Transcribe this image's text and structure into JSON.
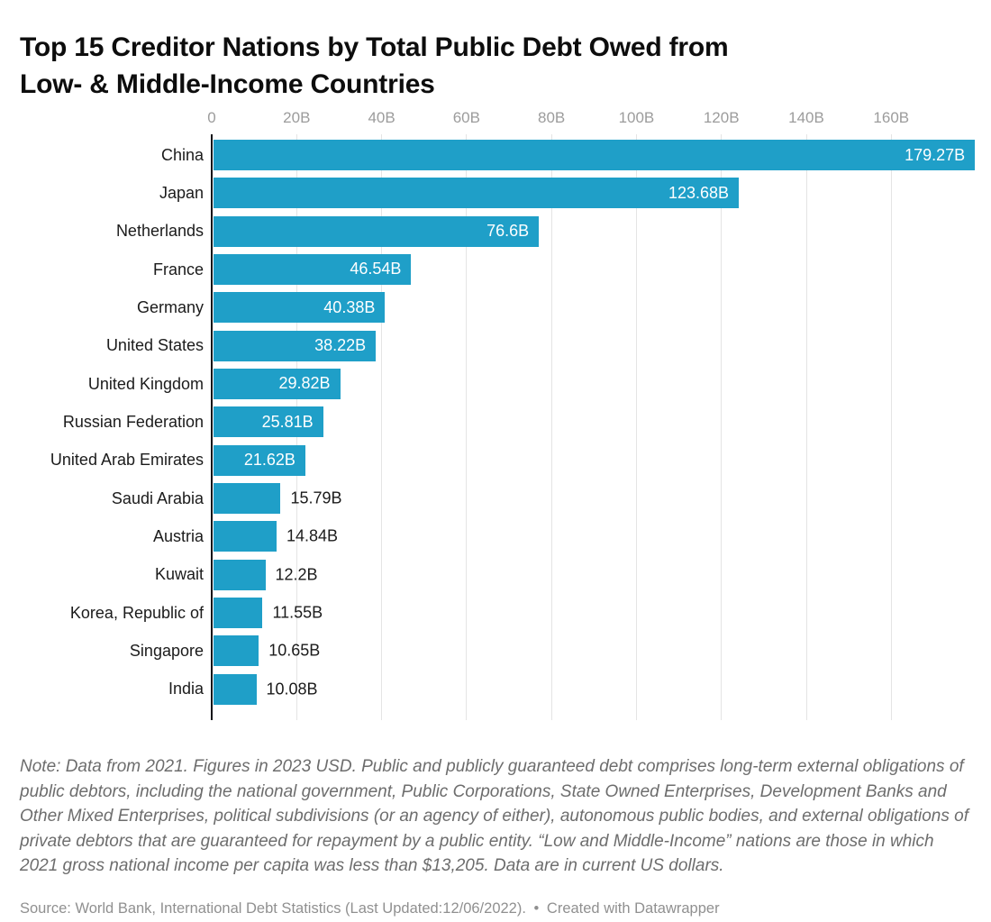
{
  "header": {
    "title_line1": "Top 15 Creditor Nations by Total Public Debt Owed from",
    "title_line2": "Low- & Middle-Income Countries"
  },
  "chart_data": {
    "type": "bar",
    "orientation": "horizontal",
    "title": "Top 15 Creditor Nations by Total Public Debt Owed from Low- & Middle-Income Countries",
    "categories": [
      "China",
      "Japan",
      "Netherlands",
      "France",
      "Germany",
      "United States",
      "United Kingdom",
      "Russian Federation",
      "United Arab Emirates",
      "Saudi Arabia",
      "Austria",
      "Kuwait",
      "Korea, Republic of",
      "Singapore",
      "India"
    ],
    "values": [
      179.27,
      123.68,
      76.6,
      46.54,
      40.38,
      38.22,
      29.82,
      25.81,
      21.62,
      15.79,
      14.84,
      12.2,
      11.55,
      10.65,
      10.08
    ],
    "value_labels": [
      "179.27B",
      "123.68B",
      "76.6B",
      "46.54B",
      "40.38B",
      "38.22B",
      "29.82B",
      "25.81B",
      "21.62B",
      "15.79B",
      "14.84B",
      "12.2B",
      "11.55B",
      "10.65B",
      "10.08B"
    ],
    "unit": "billions USD",
    "xlabel": "",
    "ylabel": "",
    "xlim": [
      0,
      182
    ],
    "grid": true,
    "legend": "none",
    "axis_ticks": [
      {
        "value": 0,
        "label": "0"
      },
      {
        "value": 20,
        "label": "20B"
      },
      {
        "value": 40,
        "label": "40B"
      },
      {
        "value": 60,
        "label": "60B"
      },
      {
        "value": 80,
        "label": "80B"
      },
      {
        "value": 100,
        "label": "100B"
      },
      {
        "value": 120,
        "label": "120B"
      },
      {
        "value": 140,
        "label": "140B"
      },
      {
        "value": 160,
        "label": "160B"
      }
    ],
    "colors": {
      "bar": "#1f9fc8",
      "value_inside": "#ffffff",
      "value_outside": "#1b1b1b",
      "gridline": "#e4e4e4",
      "axis_line": "#141419",
      "tick_label": "#9c9c9c",
      "category_label": "#1b1b1b"
    }
  },
  "footer": {
    "note": "Note: Data from 2021. Figures in 2023 USD. Public and publicly guaranteed debt comprises long-term external obligations of public debtors, including the national government, Public Corporations, State Owned Enterprises, Development Banks and Other Mixed Enterprises, political subdivisions (or an agency of either), autonomous public bodies, and external obligations of private debtors that are guaranteed for repayment by a public entity. “Low and Middle-Income” nations are those in which 2021 gross national income per capita was less than $13,205. Data are in current US dollars.",
    "source": "Source: World Bank, International Debt Statistics (Last Updated:12/06/2022).",
    "separator": "•",
    "attribution": "Created with Datawrapper"
  }
}
